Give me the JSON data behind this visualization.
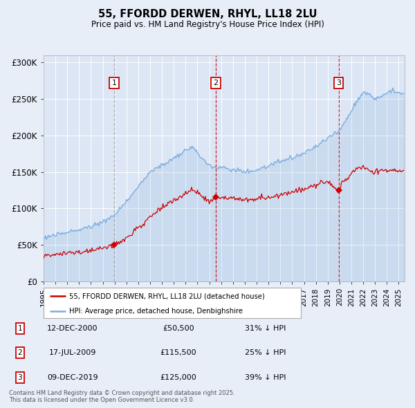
{
  "title": "55, FFORDD DERWEN, RHYL, LL18 2LU",
  "subtitle": "Price paid vs. HM Land Registry's House Price Index (HPI)",
  "bg_color": "#e8eef8",
  "plot_bg_color": "#dce6f5",
  "red_color": "#cc0000",
  "blue_color": "#7aabdd",
  "grid_color": "#ffffff",
  "ylim": [
    0,
    310000
  ],
  "yticks": [
    0,
    50000,
    100000,
    150000,
    200000,
    250000,
    300000
  ],
  "ytick_labels": [
    "£0",
    "£50K",
    "£100K",
    "£150K",
    "£200K",
    "£250K",
    "£300K"
  ],
  "xmin": 1995,
  "xmax": 2025.5,
  "transactions": [
    {
      "num": 1,
      "year": 2000.96,
      "price": 50500,
      "date": "12-DEC-2000",
      "vline_style": "grey"
    },
    {
      "num": 2,
      "year": 2009.54,
      "price": 115500,
      "date": "17-JUL-2009",
      "vline_style": "red"
    },
    {
      "num": 3,
      "year": 2019.94,
      "price": 125000,
      "date": "09-DEC-2019",
      "vline_style": "red"
    }
  ],
  "legend_red": "55, FFORDD DERWEN, RHYL, LL18 2LU (detached house)",
  "legend_blue": "HPI: Average price, detached house, Denbighshire",
  "footer": "Contains HM Land Registry data © Crown copyright and database right 2025.\nThis data is licensed under the Open Government Licence v3.0.",
  "table_rows": [
    {
      "num": "1",
      "date": "12-DEC-2000",
      "price": "£50,500",
      "info": "31% ↓ HPI"
    },
    {
      "num": "2",
      "date": "17-JUL-2009",
      "price": "£115,500",
      "info": "25% ↓ HPI"
    },
    {
      "num": "3",
      "date": "09-DEC-2019",
      "price": "£125,000",
      "info": "39% ↓ HPI"
    }
  ]
}
